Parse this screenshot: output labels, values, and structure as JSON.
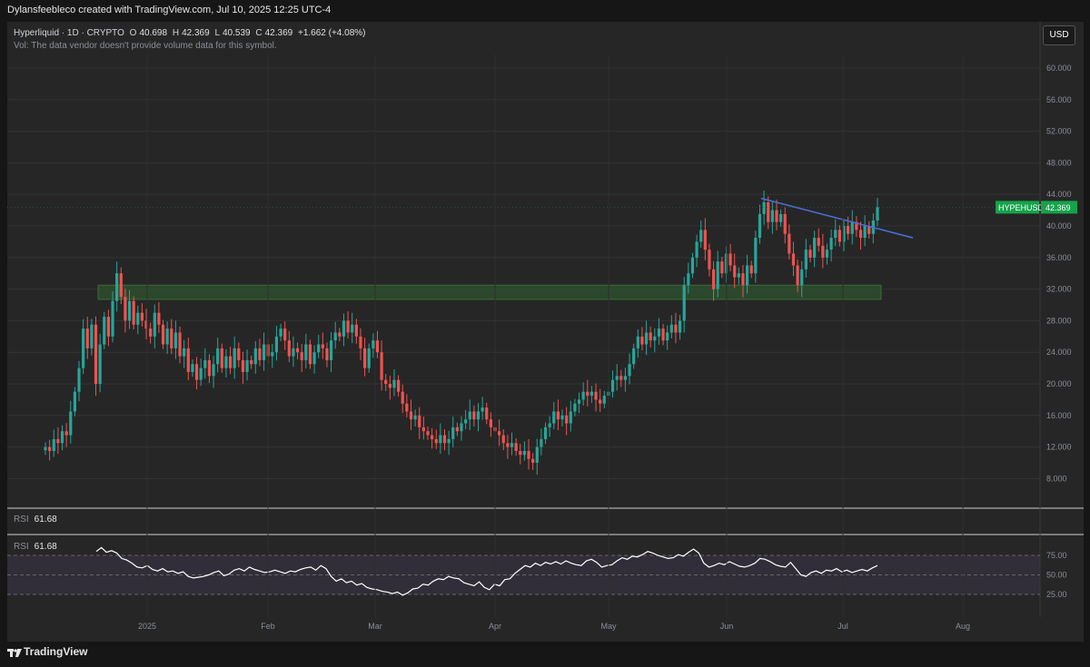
{
  "header": {
    "caption": "Dylansfeebleco created with TradingView.com, Jul 10, 2025 12:25 UTC-4"
  },
  "legend": {
    "symbol": "Hyperliquid · 1D · CRYPTO",
    "open_label": "O",
    "open": "40.698",
    "high_label": "H",
    "high": "42.369",
    "low_label": "L",
    "low": "40.539",
    "close_label": "C",
    "close": "42.369",
    "change": "+1.662 (+4.08%)",
    "volume_note": "Vol: The data vendor doesn't provide volume data for this symbol."
  },
  "currency_button": "USD",
  "price_tag": {
    "symbol": "HYPEHUSD",
    "value": "42.369"
  },
  "rsi": {
    "label": "RSI",
    "value": "61.68"
  },
  "footer": {
    "logo_text": "TradingView"
  },
  "colors": {
    "up": "#26a69a",
    "down": "#ef5350",
    "zone": "#2e4f2e",
    "trendline": "#4a6cd4",
    "rsi_band": "#3a3448",
    "tag_bg": "#16a34a"
  },
  "chart_data": [
    {
      "type": "candlestick",
      "title": "",
      "x_ticks": [
        "2025",
        "Feb",
        "Mar",
        "Apr",
        "May",
        "Jun",
        "Jul",
        "Aug"
      ],
      "y_ticks": [
        "8.000",
        "12.000",
        "16.000",
        "20.000",
        "24.000",
        "28.000",
        "32.000",
        "36.000",
        "40.000",
        "44.000",
        "48.000",
        "52.000",
        "56.000",
        "60.000"
      ],
      "ylim": [
        4,
        62
      ],
      "support_zone": [
        30.7,
        32.5
      ],
      "trendline": {
        "from": [
          "Jun 8",
          43.5
        ],
        "to": [
          "Jul 19",
          38.5
        ]
      },
      "last_price": 42.369,
      "closes": [
        12.0,
        11.5,
        13.0,
        12.5,
        14.0,
        13.5,
        16.5,
        19.0,
        22.0,
        27.0,
        24.5,
        27.5,
        20.0,
        25.0,
        28.5,
        26.0,
        30.5,
        34.0,
        31.0,
        28.0,
        30.5,
        27.5,
        29.0,
        28.0,
        27.0,
        26.0,
        29.0,
        27.5,
        25.0,
        27.0,
        24.5,
        26.5,
        23.5,
        24.5,
        21.5,
        22.5,
        20.5,
        22.0,
        23.0,
        21.0,
        22.5,
        24.5,
        22.0,
        23.5,
        22.0,
        24.5,
        23.0,
        21.5,
        23.0,
        22.5,
        24.5,
        23.0,
        25.0,
        23.5,
        24.0,
        26.0,
        27.0,
        25.5,
        23.5,
        24.5,
        24.0,
        23.0,
        25.0,
        22.5,
        24.0,
        25.0,
        24.5,
        23.0,
        25.5,
        26.5,
        26.0,
        28.0,
        26.5,
        27.5,
        26.0,
        24.5,
        22.0,
        24.5,
        25.5,
        24.0,
        20.5,
        20.0,
        19.5,
        20.5,
        19.0,
        17.5,
        16.5,
        15.5,
        16.0,
        14.5,
        14.0,
        13.5,
        13.0,
        12.5,
        13.5,
        12.5,
        13.0,
        14.5,
        14.0,
        15.0,
        15.5,
        16.5,
        15.5,
        16.5,
        17.0,
        15.5,
        14.5,
        14.0,
        13.5,
        12.5,
        12.0,
        12.5,
        11.5,
        11.0,
        11.5,
        10.5,
        10.0,
        12.0,
        13.0,
        14.5,
        15.0,
        16.5,
        15.5,
        16.0,
        15.0,
        16.5,
        17.5,
        18.0,
        19.0,
        18.5,
        19.0,
        18.0,
        17.5,
        18.5,
        19.0,
        20.5,
        21.0,
        20.5,
        21.0,
        22.5,
        24.5,
        26.0,
        25.0,
        26.5,
        25.5,
        26.0,
        27.0,
        25.5,
        26.5,
        27.5,
        26.5,
        28.0,
        32.5,
        34.0,
        36.0,
        38.0,
        39.5,
        37.0,
        34.5,
        32.0,
        35.5,
        34.0,
        36.5,
        35.0,
        33.5,
        34.0,
        32.5,
        35.0,
        34.0,
        38.5,
        41.5,
        43.0,
        40.5,
        42.0,
        40.5,
        41.5,
        39.0,
        36.5,
        35.0,
        32.5,
        34.5,
        37.0,
        36.0,
        38.5,
        37.5,
        36.0,
        37.0,
        38.5,
        39.5,
        38.0,
        40.0,
        39.0,
        40.5,
        39.5,
        38.5,
        40.0,
        39.0,
        40.7,
        42.369
      ],
      "rsi_series": [
        80,
        85,
        79,
        81,
        78,
        71,
        69,
        65,
        60,
        59,
        62,
        57,
        55,
        58,
        54,
        55,
        52,
        54,
        48,
        46,
        47,
        48,
        50,
        53,
        55,
        49,
        51,
        56,
        58,
        55,
        60,
        57,
        55,
        53,
        54,
        56,
        54,
        52,
        55,
        54,
        57,
        59,
        60,
        56,
        62,
        58,
        48,
        42,
        45,
        40,
        42,
        37,
        39,
        34,
        32,
        31,
        29,
        28,
        26,
        28,
        24,
        27,
        32,
        33,
        38,
        37,
        42,
        45,
        44,
        48,
        46,
        45,
        40,
        38,
        36,
        41,
        34,
        31,
        38,
        36,
        44,
        45,
        52,
        57,
        62,
        60,
        65,
        62,
        66,
        64,
        67,
        64,
        68,
        65,
        63,
        62,
        68,
        70,
        66,
        60,
        62,
        63,
        68,
        72,
        70,
        74,
        73,
        76,
        80,
        78,
        75,
        73,
        71,
        72,
        76,
        74,
        79,
        83,
        78,
        65,
        60,
        62,
        65,
        63,
        67,
        64,
        61,
        60,
        62,
        65,
        71,
        70,
        67,
        63,
        61,
        60,
        66,
        58,
        50,
        48,
        53,
        55,
        52,
        56,
        55,
        58,
        54,
        56,
        53,
        55,
        57,
        55,
        59,
        62
      ],
      "rsi_levels": [
        25,
        50,
        75
      ],
      "rsi_ticks": [
        "25.00",
        "50.00",
        "75.00"
      ]
    }
  ]
}
